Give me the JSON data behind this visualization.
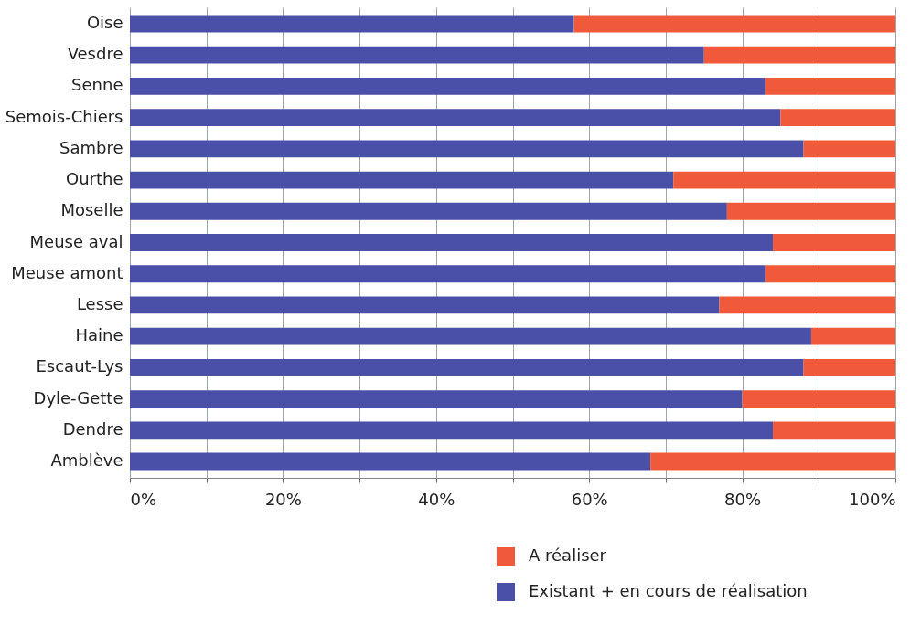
{
  "chart_data": {
    "type": "bar",
    "orientation": "horizontal",
    "stacked": true,
    "categories": [
      "Oise",
      "Vesdre",
      "Senne",
      "Semois-Chiers",
      "Sambre",
      "Ourthe",
      "Moselle",
      "Meuse aval",
      "Meuse amont",
      "Lesse",
      "Haine",
      "Escaut-Lys",
      "Dyle-Gette",
      "Dendre",
      "Amblève"
    ],
    "series": [
      {
        "name": "Existant + en cours de réalisation",
        "color": "#4a4fa8",
        "values": [
          58,
          75,
          83,
          85,
          88,
          71,
          78,
          84,
          83,
          77,
          89,
          88,
          80,
          84,
          68
        ]
      },
      {
        "name": "A réaliser",
        "color": "#f05a3a",
        "values": [
          42,
          25,
          17,
          15,
          12,
          29,
          22,
          16,
          17,
          23,
          11,
          12,
          20,
          16,
          32
        ]
      }
    ],
    "xlim": [
      0,
      100
    ],
    "xticks": [
      {
        "value": 0,
        "label": "0%"
      },
      {
        "value": 10,
        "label": null
      },
      {
        "value": 20,
        "label": "20%"
      },
      {
        "value": 30,
        "label": null
      },
      {
        "value": 40,
        "label": "40%"
      },
      {
        "value": 50,
        "label": null
      },
      {
        "value": 60,
        "label": "60%"
      },
      {
        "value": 70,
        "label": null
      },
      {
        "value": 80,
        "label": "80%"
      },
      {
        "value": 90,
        "label": null
      },
      {
        "value": 100,
        "label": "100%"
      }
    ],
    "grid": "x",
    "legend": "bottom right"
  }
}
